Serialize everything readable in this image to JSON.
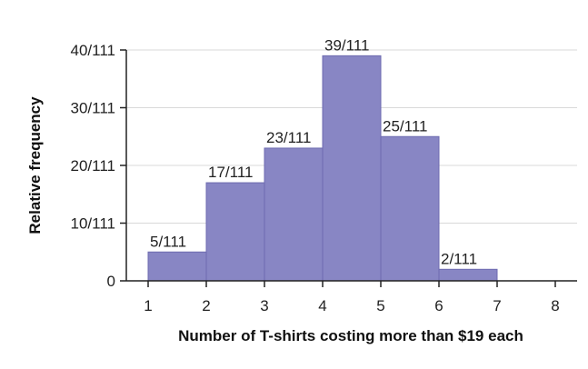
{
  "chart_data": {
    "type": "bar",
    "histogram": true,
    "bins": [
      {
        "start": 1,
        "end": 2,
        "value": 5,
        "label": "5/111"
      },
      {
        "start": 2,
        "end": 3,
        "value": 17,
        "label": "17/111"
      },
      {
        "start": 3,
        "end": 4,
        "value": 23,
        "label": "23/111"
      },
      {
        "start": 4,
        "end": 5,
        "value": 39,
        "label": "39/111"
      },
      {
        "start": 5,
        "end": 6,
        "value": 25,
        "label": "25/111"
      },
      {
        "start": 6,
        "end": 7,
        "value": 2,
        "label": "2/111"
      }
    ],
    "denominator": 111,
    "xlabel": "Number of T-shirts costing more than $19 each",
    "ylabel": "Relative frequency",
    "xlim": [
      1,
      8
    ],
    "ylim": [
      0,
      40
    ],
    "x_ticks": [
      "1",
      "2",
      "3",
      "4",
      "5",
      "6",
      "7",
      "8"
    ],
    "y_ticks": [
      {
        "value": 0,
        "label": "0"
      },
      {
        "value": 10,
        "label": "10/111"
      },
      {
        "value": 20,
        "label": "20/111"
      },
      {
        "value": 30,
        "label": "30/111"
      },
      {
        "value": 40,
        "label": "40/111"
      }
    ],
    "grid": true,
    "colors": {
      "bar": "#8886c4",
      "bar_edge": "#6e6bb0",
      "grid": "#d9d9d9",
      "axis": "#222222"
    }
  }
}
